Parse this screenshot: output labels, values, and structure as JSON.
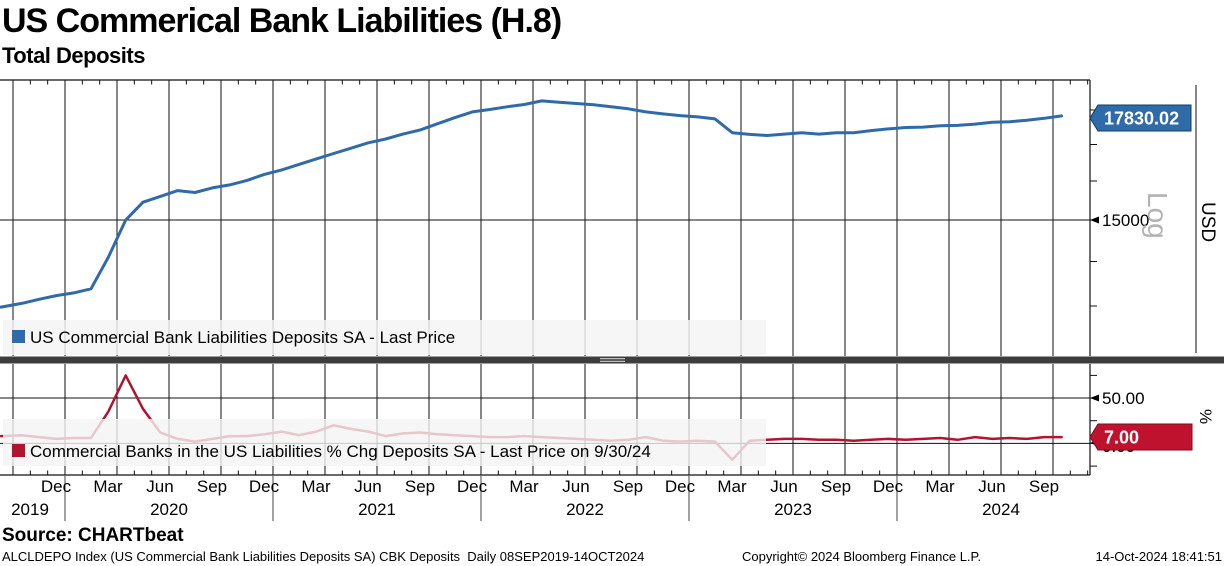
{
  "header": {
    "title": "US Commerical Bank Liabilities (H.8)",
    "subtitle": "Total Deposits"
  },
  "top_panel": {
    "legend_label": "US Commercial Bank Liabilities Deposits SA - Last Price",
    "last_price_badge": "17830.02",
    "y_tick_label": "15000",
    "scale_label": "Log",
    "unit_label": "USD",
    "line_color": "#2f6ba8"
  },
  "bottom_panel": {
    "legend_label": "Commercial Banks in the US Liabilities % Chg Deposits SA - Last Price on 9/30/24",
    "last_price_badge": "7.00",
    "y_tick_upper_label": "50.00",
    "y_tick_zero_label": "0.00",
    "unit_label": "%",
    "line_color": "#b2132f"
  },
  "x_axis": {
    "month_labels": [
      "Dec",
      "Mar",
      "Jun",
      "Sep",
      "Dec",
      "Mar",
      "Jun",
      "Sep",
      "Dec",
      "Mar",
      "Jun",
      "Sep",
      "Dec",
      "Mar",
      "Jun",
      "Sep",
      "Dec",
      "Mar",
      "Jun",
      "Sep"
    ],
    "year_labels": [
      "2019",
      "2020",
      "2021",
      "2022",
      "2023",
      "2024"
    ]
  },
  "footer": {
    "source": "Source: CHARTbeat",
    "descriptor": "ALCLDEPO Index (US Commercial Bank Liabilities Deposits SA) CBK Deposits  Daily 08SEP2019-14OCT2024",
    "copyright": "Copyright© 2024 Bloomberg Finance L.P.",
    "timestamp": "14-Oct-2024 18:41:51"
  },
  "chart_data": [
    {
      "type": "line",
      "name": "US Commercial Bank Liabilities Deposits SA - Last Price",
      "unit": "USD",
      "y_scale": "log",
      "color": "#2f6ba8",
      "x_start": "2019-09",
      "x_end": "2024-10",
      "frequency": "monthly",
      "y_axis_ticks": [
        15000
      ],
      "last_price": 17830.02,
      "ylim_approx": [
        12500,
        18800
      ],
      "values": [
        12980,
        13060,
        13150,
        13230,
        13290,
        13380,
        14100,
        15000,
        15450,
        15600,
        15750,
        15700,
        15820,
        15900,
        16020,
        16180,
        16300,
        16450,
        16600,
        16750,
        16900,
        17050,
        17160,
        17300,
        17420,
        17600,
        17780,
        17950,
        18020,
        18100,
        18170,
        18280,
        18240,
        18200,
        18160,
        18100,
        18040,
        17950,
        17890,
        17840,
        17800,
        17740,
        17340,
        17290,
        17260,
        17300,
        17340,
        17300,
        17340,
        17340,
        17400,
        17450,
        17490,
        17500,
        17540,
        17550,
        17590,
        17640,
        17660,
        17700,
        17760,
        17830.02
      ]
    },
    {
      "type": "line",
      "name": "Commercial Banks in the US Liabilities % Chg Deposits SA - Last Price on 9/30/24",
      "unit": "%",
      "y_scale": "linear",
      "color": "#b2132f",
      "x_start": "2019-09",
      "x_end": "2024-10",
      "frequency": "monthly",
      "y_axis_ticks": [
        50,
        0
      ],
      "last_price": 7.0,
      "ylim_approx": [
        -35,
        88
      ],
      "values": [
        8,
        9,
        7,
        5,
        6,
        6,
        35,
        75,
        38,
        12,
        5,
        2,
        5,
        8,
        8,
        10,
        13,
        9,
        13,
        20,
        16,
        13,
        8,
        11,
        12,
        10,
        9,
        8,
        7,
        7,
        8,
        7,
        6,
        5,
        4,
        3,
        4,
        7,
        3,
        2,
        3,
        2,
        -18,
        3,
        4,
        5,
        5,
        4,
        4,
        3,
        4,
        5,
        4,
        5,
        6,
        4,
        7,
        5,
        6,
        5,
        7,
        7
      ]
    }
  ]
}
